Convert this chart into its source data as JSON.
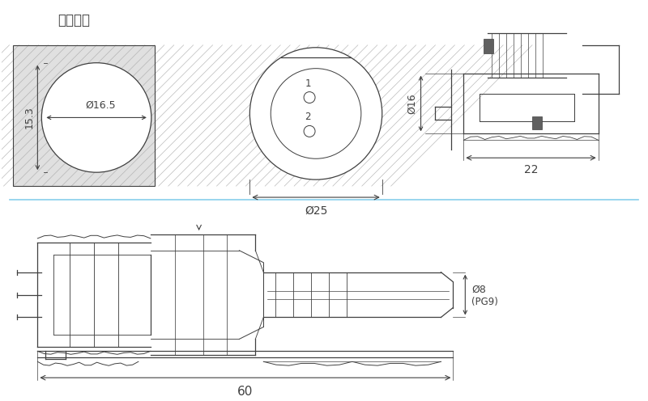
{
  "bg_color": "#ffffff",
  "line_color": "#404040",
  "dim_color": "#404040",
  "title": "安装开孔",
  "dim_d165": "Ø16.5",
  "dim_153": "15.3",
  "dim_d25": "Ø25",
  "dim_16": "Ø16",
  "dim_22": "22",
  "dim_60": "60",
  "dim_d8": "Ø8",
  "dim_pg9": "(PG9)",
  "label_1": "1",
  "label_2": "2",
  "fig_width": 8.0,
  "fig_height": 4.96
}
